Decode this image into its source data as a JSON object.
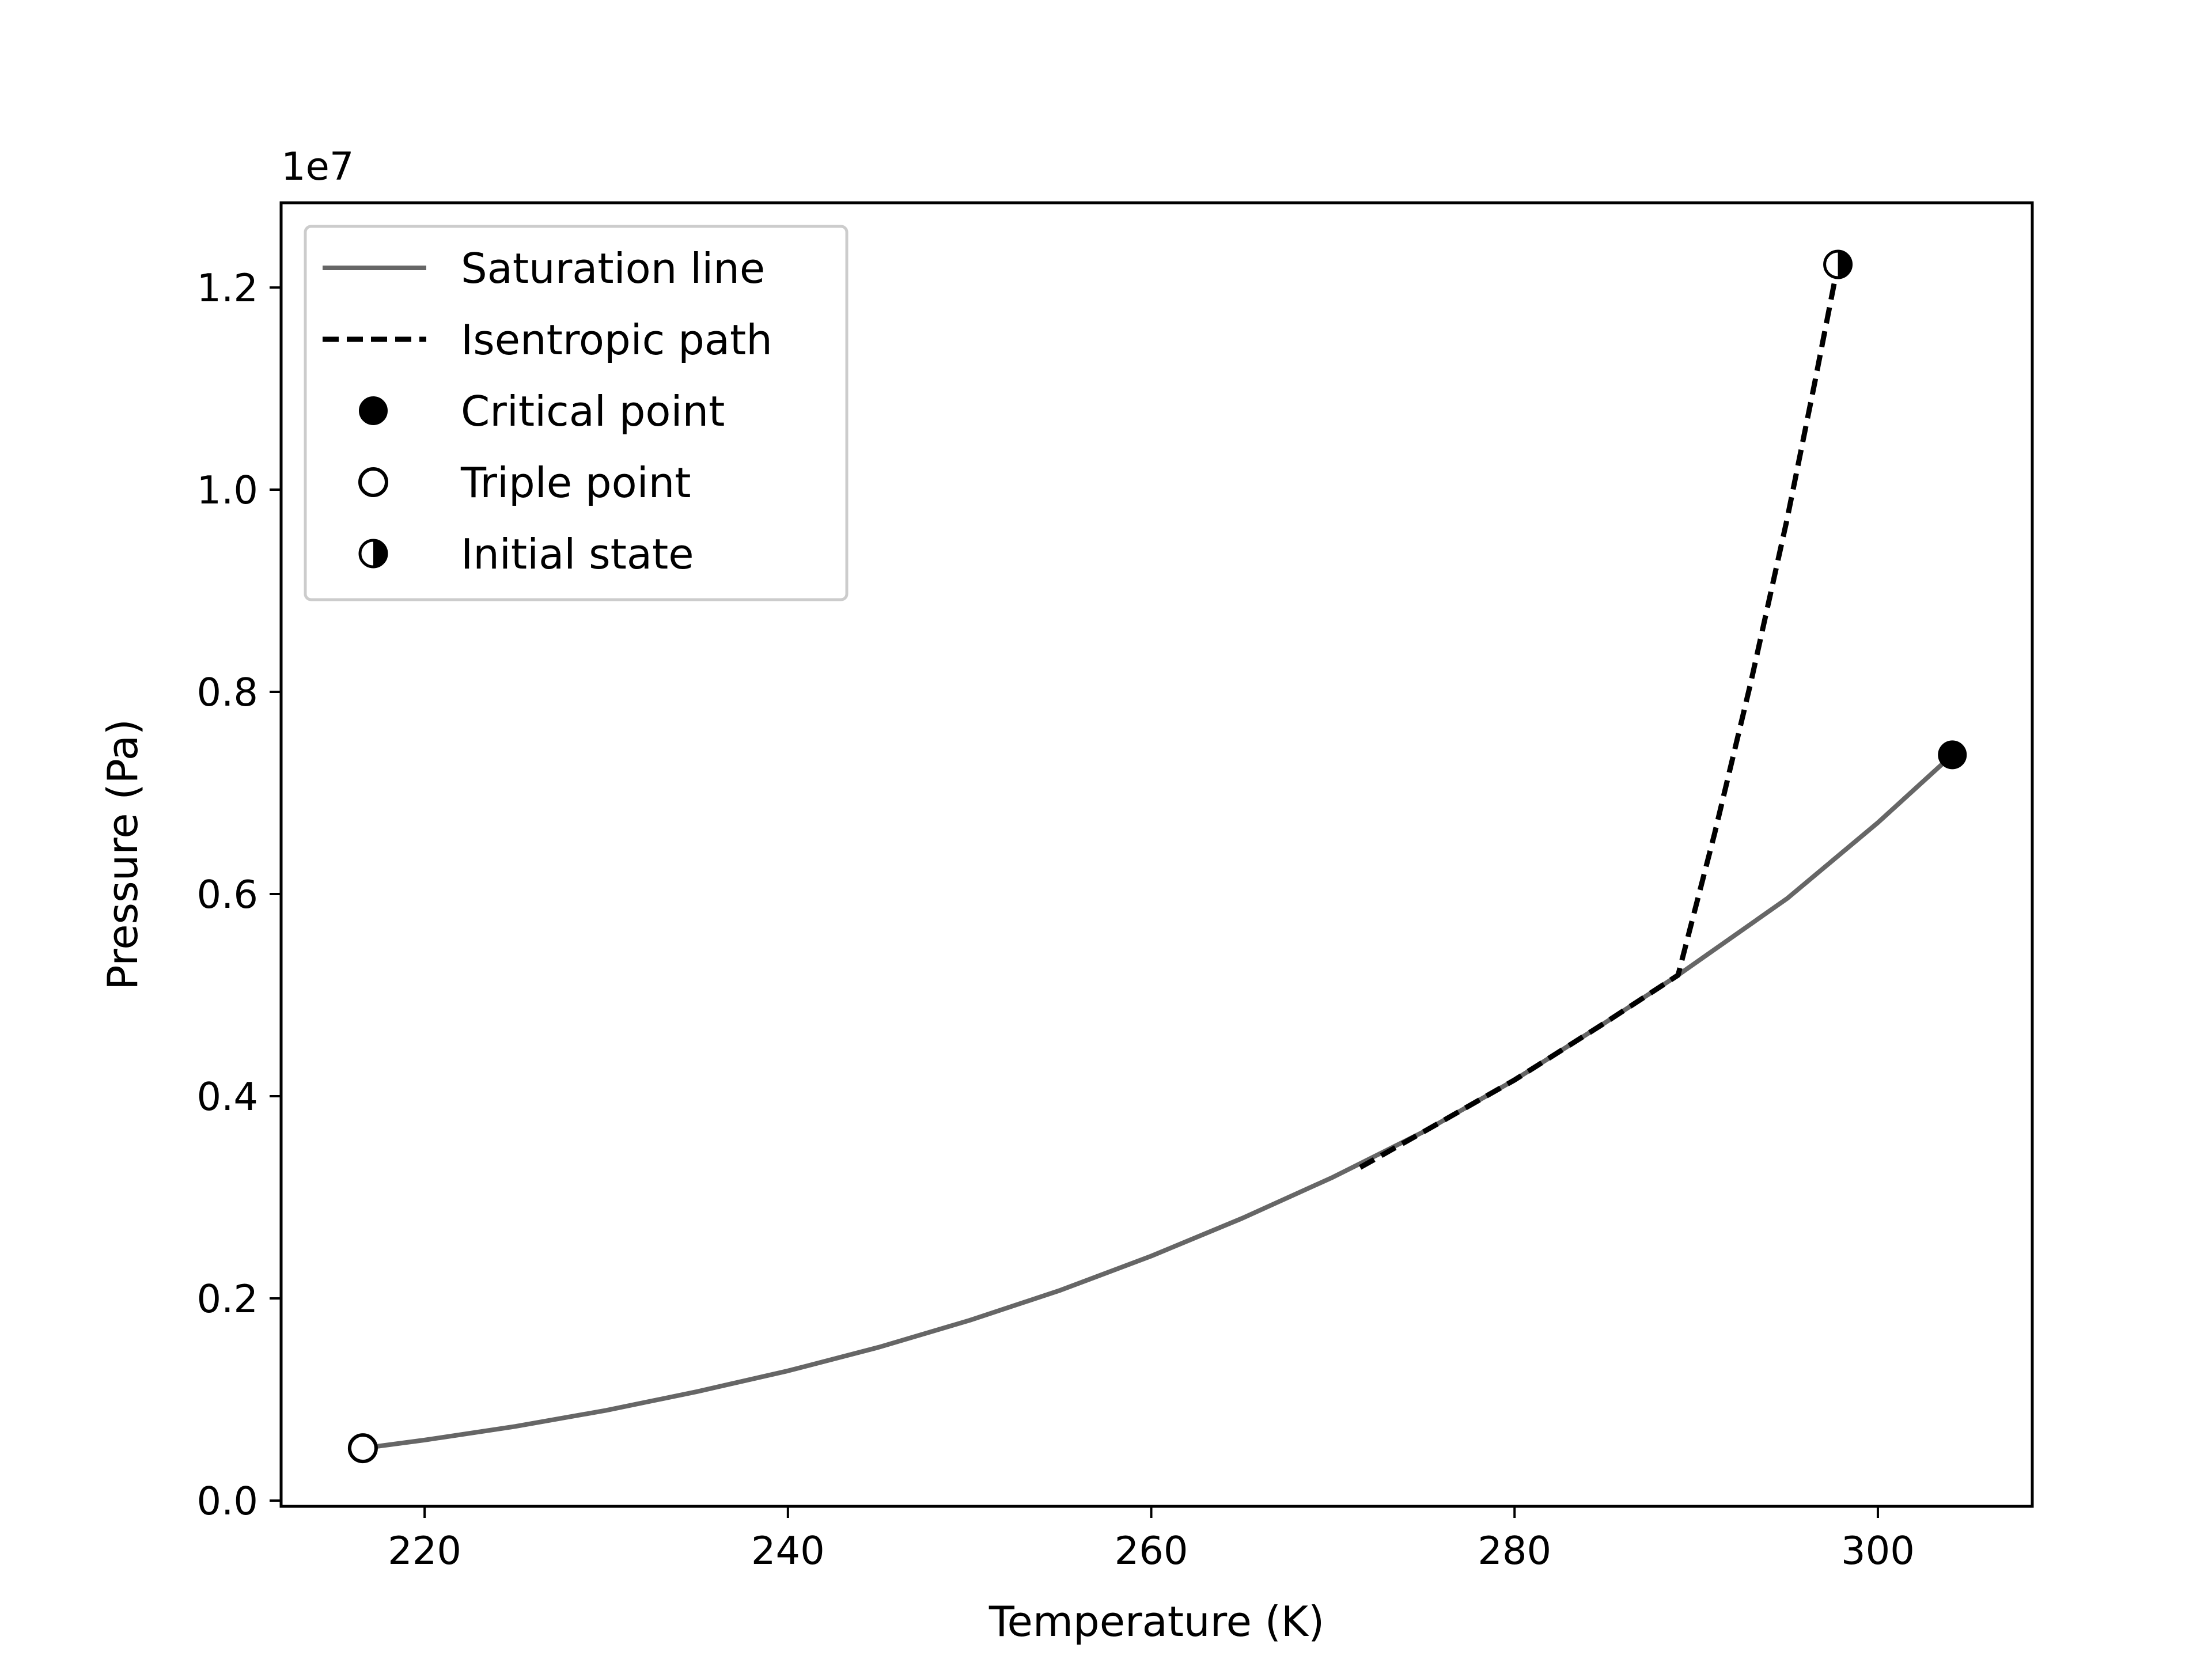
{
  "chart_data": {
    "type": "line",
    "title": "",
    "xlabel": "Temperature (K)",
    "ylabel": "Pressure (Pa)",
    "y_offset_label": "1e7",
    "xlim": [
      212.1,
      308.5
    ],
    "ylim": [
      -0.0057,
      1.2838
    ],
    "x_ticks": [
      220,
      240,
      260,
      280,
      300
    ],
    "x_tick_labels": [
      "220",
      "240",
      "260",
      "280",
      "300"
    ],
    "y_ticks": [
      0.0,
      0.2,
      0.4,
      0.6,
      0.8,
      1.0,
      1.2
    ],
    "y_tick_labels": [
      "0.0",
      "0.2",
      "0.4",
      "0.6",
      "0.8",
      "1.0",
      "1.2"
    ],
    "grid": false,
    "legend_position": "upper-left",
    "series": [
      {
        "name": "Saturation line",
        "style": "solid",
        "color": "#666666",
        "x": [
          216.6,
          220,
          225,
          230,
          235,
          240,
          245,
          250,
          255,
          260,
          265,
          270,
          275,
          280,
          285,
          289,
          295,
          300,
          304.1
        ],
        "y": [
          0.0518,
          0.0599,
          0.0734,
          0.0893,
          0.1078,
          0.1283,
          0.1517,
          0.1783,
          0.2081,
          0.2419,
          0.2792,
          0.3199,
          0.3649,
          0.4161,
          0.4729,
          0.5198,
          0.5955,
          0.6706,
          0.7377
        ]
      },
      {
        "name": "Isentropic path",
        "style": "dashed",
        "color": "#000000",
        "x": [
          271.5,
          275,
          280,
          285,
          289,
          291,
          293,
          295,
          296.5,
          297.8
        ],
        "y": [
          0.3296,
          0.3649,
          0.4161,
          0.4729,
          0.5198,
          0.6588,
          0.8088,
          0.9707,
          1.1037,
          1.2228
        ]
      }
    ],
    "points": [
      {
        "name": "Critical point",
        "marker": "filled",
        "x": 304.1,
        "y": 0.7377
      },
      {
        "name": "Triple point",
        "marker": "open",
        "x": 216.6,
        "y": 0.0518
      },
      {
        "name": "Initial state",
        "marker": "half",
        "x": 297.8,
        "y": 1.2228
      }
    ]
  }
}
